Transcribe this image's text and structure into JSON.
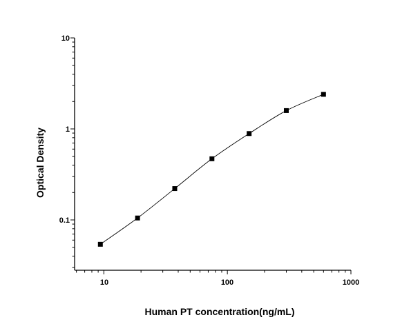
{
  "chart_data": {
    "type": "line",
    "title": "",
    "xlabel": "Human PT concentration(ng/mL)",
    "ylabel": "Optical Density",
    "x_scale": "log",
    "y_scale": "log",
    "xlim": [
      5.8,
      1000
    ],
    "ylim": [
      0.028,
      10
    ],
    "x_ticks": [
      10,
      100,
      1000
    ],
    "x_tick_labels": [
      "10",
      "100",
      "1000"
    ],
    "y_ticks": [
      0.1,
      1,
      10
    ],
    "y_tick_labels": [
      "0.1",
      "1",
      "10"
    ],
    "grid": false,
    "legend": "none",
    "marker": "square",
    "line_color": "#000000",
    "marker_color": "#000000",
    "series": [
      {
        "x": [
          9.375,
          18.75,
          37.5,
          75,
          150,
          300,
          600
        ],
        "y": [
          0.054,
          0.105,
          0.221,
          0.47,
          0.889,
          1.59,
          2.4
        ]
      }
    ]
  }
}
